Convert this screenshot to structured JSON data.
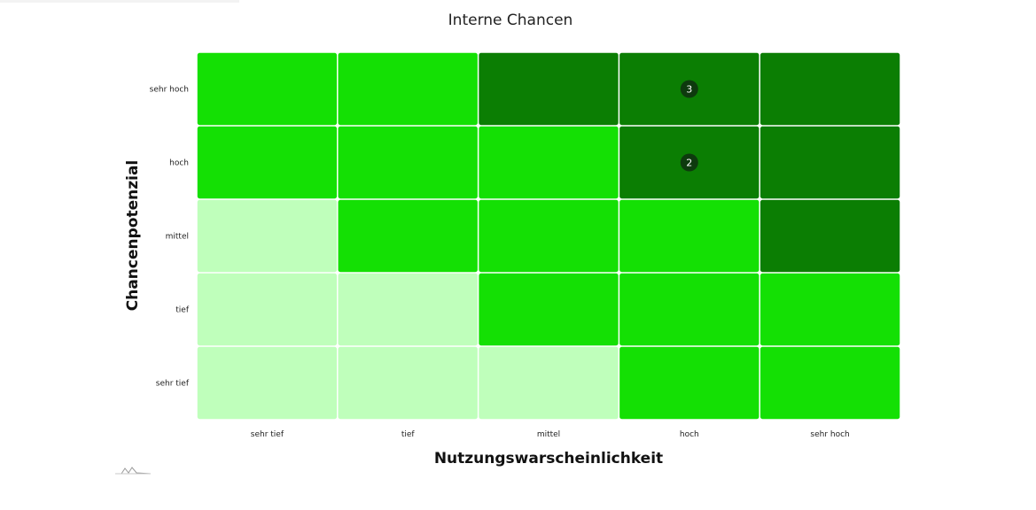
{
  "chart_data": {
    "type": "heatmap",
    "title": "Interne Chancen",
    "xlabel": "Nutzungswarscheinlichkeit",
    "ylabel": "Chancenpotenzial",
    "x_categories": [
      "sehr tief",
      "tief",
      "mittel",
      "hoch",
      "sehr hoch"
    ],
    "y_categories": [
      "sehr tief",
      "tief",
      "mittel",
      "hoch",
      "sehr hoch"
    ],
    "levels": [
      [
        0,
        0,
        0,
        1,
        1
      ],
      [
        0,
        0,
        1,
        1,
        1
      ],
      [
        0,
        1,
        1,
        1,
        2
      ],
      [
        1,
        1,
        1,
        2,
        2
      ],
      [
        1,
        1,
        2,
        2,
        2
      ]
    ],
    "colors": [
      "#bfffbb",
      "#14e004",
      "#0b7e03"
    ],
    "markers": [
      {
        "x": "hoch",
        "y": "sehr hoch",
        "label": "3"
      },
      {
        "x": "hoch",
        "y": "hoch",
        "label": "2"
      }
    ],
    "marker_color": "#0e3a0e",
    "grid": true,
    "legend": "none"
  }
}
